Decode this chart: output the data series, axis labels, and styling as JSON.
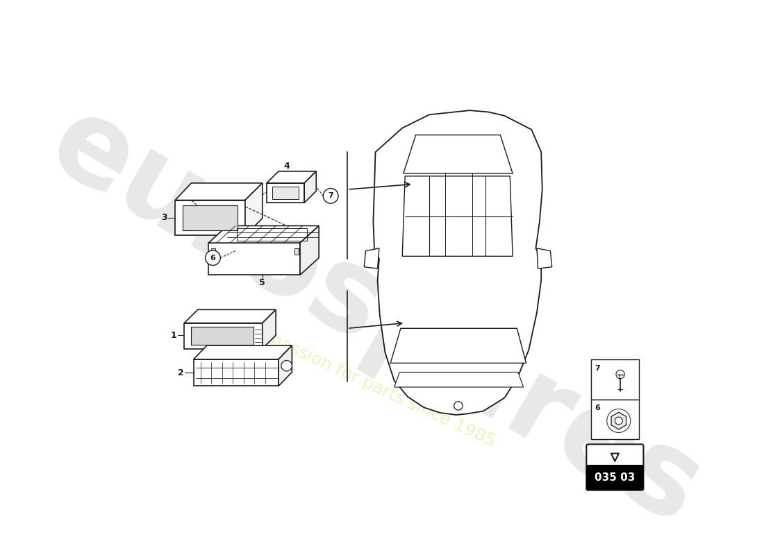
{
  "bg_color": "#ffffff",
  "line_color": "#1a1a1a",
  "text_color": "#1a1a1a",
  "part_number": "035 03",
  "watermark_color": "#e8e8e8",
  "watermark_text": "eurospares",
  "slogan_color": "#f0f0c0",
  "slogan_text": "a passion for parts since 1985",
  "fig_w": 11.0,
  "fig_h": 8.0,
  "dpi": 100
}
